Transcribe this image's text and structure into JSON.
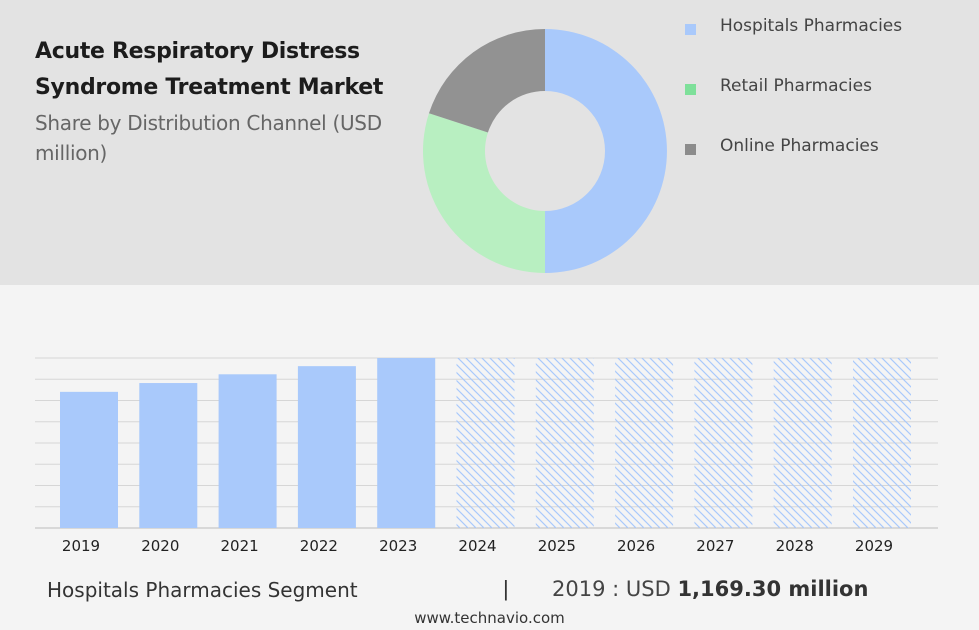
{
  "header": {
    "title": "Acute Respiratory Distress Syndrome Treatment Market",
    "subtitle": "Share by Distribution Channel (USD million)"
  },
  "legend": [
    {
      "label": "Hospitals Pharmacies",
      "color": "#a9c9fb"
    },
    {
      "label": "Retail Pharmacies",
      "color": "#7ee09a"
    },
    {
      "label": "Online Pharmacies",
      "color": "#8c8c8c"
    }
  ],
  "chart_data": [
    {
      "type": "pie",
      "donut": true,
      "slices": [
        {
          "label": "Hospitals Pharmacies",
          "value": 50,
          "color": "#a9c9fb"
        },
        {
          "label": "Retail Pharmacies",
          "value": 30,
          "color": "#b8efc1"
        },
        {
          "label": "Online Pharmacies",
          "value": 20,
          "color": "#929292"
        }
      ],
      "legend_position": "right"
    },
    {
      "type": "bar",
      "categories": [
        "2019",
        "2020",
        "2021",
        "2022",
        "2023",
        "2024",
        "2025",
        "2026",
        "2027",
        "2028",
        "2029"
      ],
      "values": [
        1169.3,
        1245,
        1320,
        1390,
        1460,
        1460,
        1460,
        1460,
        1460,
        1460,
        1460
      ],
      "forecast_from": "2024",
      "bar_color": "#a9c9fb",
      "ylim": [
        0,
        1460
      ],
      "grid": true
    }
  ],
  "footer": {
    "segment_label": "Hospitals Pharmacies Segment",
    "divider": "|",
    "value_prefix": "2019 : USD",
    "value_strong": "1,169.30 million",
    "source": "www.technavio.com"
  }
}
